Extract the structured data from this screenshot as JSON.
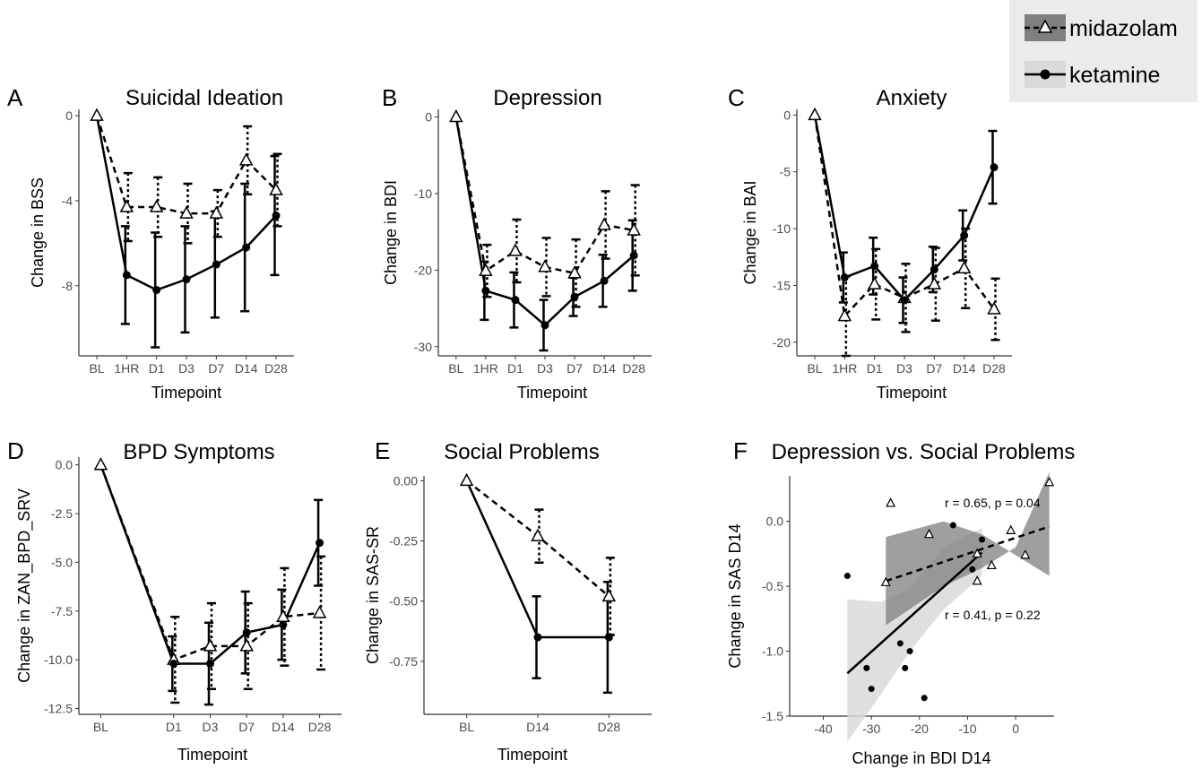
{
  "legend": {
    "items": [
      {
        "label": "midazolam",
        "style": "dashed-triangle"
      },
      {
        "label": "ketamine",
        "style": "solid-circle"
      }
    ]
  },
  "colors": {
    "line": "#000000",
    "axis": "#333333",
    "tick_text": "#4d4d4d",
    "legend_bg": "#ebebeb",
    "band_mid": "#7f7f7f",
    "band_ket": "#d9d9d9"
  },
  "chart_data": [
    {
      "panel": "A",
      "type": "line",
      "title": "Suicidal Ideation",
      "xlabel": "Timepoint",
      "ylabel": "Change in BSS",
      "categories": [
        "BL",
        "1HR",
        "D1",
        "D3",
        "D7",
        "D14",
        "D28"
      ],
      "ylim": [
        -11.3,
        0.3
      ],
      "yticks": [
        0,
        -4,
        -8
      ],
      "ytick_labels": [
        "0",
        "-4",
        "-8"
      ],
      "series": [
        {
          "name": "midazolam",
          "values": [
            0,
            -4.3,
            -4.3,
            -4.6,
            -4.6,
            -2.1,
            -3.5
          ],
          "err": [
            0,
            1.6,
            1.4,
            1.4,
            1.1,
            1.6,
            1.7
          ]
        },
        {
          "name": "ketamine",
          "values": [
            0,
            -7.5,
            -8.2,
            -7.7,
            -7.0,
            -6.2,
            -4.7
          ],
          "err": [
            0,
            2.3,
            2.7,
            2.5,
            2.5,
            3.0,
            2.8
          ]
        }
      ]
    },
    {
      "panel": "B",
      "type": "line",
      "title": "Depression",
      "xlabel": "Timepoint",
      "ylabel": "Change in BDI",
      "categories": [
        "BL",
        "1HR",
        "D1",
        "D3",
        "D7",
        "D14",
        "D28"
      ],
      "ylim": [
        -31.2,
        1
      ],
      "yticks": [
        0,
        -10,
        -20,
        -30
      ],
      "ytick_labels": [
        "0",
        "-10",
        "-20",
        "-30"
      ],
      "series": [
        {
          "name": "midazolam",
          "values": [
            0,
            -20.1,
            -17.5,
            -19.6,
            -20.4,
            -14.1,
            -14.8
          ],
          "err": [
            0,
            3.4,
            4.1,
            3.8,
            4.4,
            4.4,
            5.9
          ]
        },
        {
          "name": "ketamine",
          "values": [
            0,
            -22.7,
            -23.9,
            -27.2,
            -23.5,
            -21.4,
            -18.1
          ],
          "err": [
            0,
            3.8,
            3.6,
            3.3,
            2.5,
            3.4,
            4.6
          ]
        }
      ]
    },
    {
      "panel": "C",
      "type": "line",
      "title": "Anxiety",
      "xlabel": "Timepoint",
      "ylabel": "Change in BAI",
      "categories": [
        "BL",
        "1HR",
        "D1",
        "D3",
        "D7",
        "D14",
        "D28"
      ],
      "ylim": [
        -21.2,
        0.5
      ],
      "yticks": [
        0,
        -5,
        -10,
        -15,
        -20
      ],
      "ytick_labels": [
        "0",
        "-5",
        "-10",
        "-15",
        "-20"
      ],
      "series": [
        {
          "name": "midazolam",
          "values": [
            0,
            -17.7,
            -14.9,
            -16.1,
            -14.9,
            -13.5,
            -17.1
          ],
          "err": [
            0,
            3.5,
            3.1,
            3.0,
            3.2,
            3.5,
            2.7
          ]
        },
        {
          "name": "ketamine",
          "values": [
            0,
            -14.3,
            -13.3,
            -16.3,
            -13.6,
            -10.6,
            -4.6
          ],
          "err": [
            0,
            2.2,
            2.5,
            2.0,
            2.0,
            2.2,
            3.2
          ]
        }
      ]
    },
    {
      "panel": "D",
      "type": "line",
      "title": "BPD Symptoms",
      "xlabel": "Timepoint",
      "ylabel": "Change in ZAN_BPD_SRV",
      "categories": [
        "BL",
        "D1",
        "D3",
        "D7",
        "D14",
        "D28"
      ],
      "x": [
        0,
        2,
        3,
        4,
        5,
        6
      ],
      "ylim": [
        -12.8,
        0.4
      ],
      "yticks": [
        0,
        -2.5,
        -5,
        -7.5,
        -10,
        -12.5
      ],
      "ytick_labels": [
        "0.0",
        "-2.5",
        "-5.0",
        "-7.5",
        "-10.0",
        "-12.5"
      ],
      "series": [
        {
          "name": "midazolam",
          "values": [
            0,
            -10.0,
            -9.3,
            -9.3,
            -7.8,
            -7.6
          ],
          "err": [
            0,
            2.2,
            2.2,
            2.2,
            2.5,
            2.9
          ]
        },
        {
          "name": "ketamine",
          "values": [
            0,
            -10.2,
            -10.2,
            -8.6,
            -8.2,
            -4.0
          ],
          "err": [
            0,
            1.4,
            2.1,
            2.1,
            1.8,
            2.2
          ]
        }
      ]
    },
    {
      "panel": "E",
      "type": "line",
      "title": "Social Problems",
      "xlabel": "Timepoint",
      "ylabel": "Change in SAS-SR",
      "categories": [
        "BL",
        "D14",
        "D28"
      ],
      "ylim": [
        -0.97,
        0.02
      ],
      "yticks": [
        0,
        -0.25,
        -0.5,
        -0.75
      ],
      "ytick_labels": [
        "0.00",
        "-0.25",
        "-0.50",
        "-0.75"
      ],
      "series": [
        {
          "name": "midazolam",
          "values": [
            0,
            -0.23,
            -0.48
          ],
          "err": [
            0,
            0.11,
            0.16
          ]
        },
        {
          "name": "ketamine",
          "values": [
            0,
            -0.65,
            -0.65
          ],
          "err": [
            0,
            0.17,
            0.23
          ]
        }
      ]
    },
    {
      "panel": "F",
      "type": "scatter",
      "title": "Depression vs. Social Problems",
      "xlabel": "Change in BDI D14",
      "ylabel": "Change in SAS  D14",
      "xlim": [
        -47,
        8
      ],
      "ylim": [
        -1.5,
        0.35
      ],
      "xticks": [
        -40,
        -30,
        -20,
        -10,
        0
      ],
      "xtick_labels": [
        "-40",
        "-30",
        "-20",
        "-10",
        "0"
      ],
      "yticks": [
        0,
        -0.5,
        -1,
        -1.5
      ],
      "ytick_labels": [
        "0.0",
        "-0.5",
        "-1.0",
        "-1.5"
      ],
      "annotations": [
        "r = 0.65, p = 0.04",
        "r = 0.41, p = 0.22"
      ],
      "series": [
        {
          "name": "midazolam",
          "points": [
            [
              -27,
              -0.47
            ],
            [
              -26,
              0.14
            ],
            [
              -18,
              -0.1
            ],
            [
              -8,
              -0.25
            ],
            [
              -8,
              -0.46
            ],
            [
              -5,
              -0.34
            ],
            [
              -1,
              -0.07
            ],
            [
              2,
              -0.26
            ],
            [
              7,
              0.3
            ]
          ],
          "fit": {
            "x0": -27,
            "y0": -0.46,
            "x1": 7,
            "y1": -0.04
          },
          "band": [
            [
              -27,
              -0.8
            ],
            [
              -15,
              -0.5
            ],
            [
              -7,
              -0.36
            ],
            [
              0,
              -0.2
            ],
            [
              7,
              0.38
            ],
            [
              7,
              -0.42
            ],
            [
              0,
              -0.26
            ],
            [
              -7,
              -0.1
            ],
            [
              -15,
              0.0
            ],
            [
              -27,
              -0.12
            ]
          ]
        },
        {
          "name": "ketamine",
          "points": [
            [
              -35,
              -0.42
            ],
            [
              -31,
              -1.13
            ],
            [
              -30,
              -1.29
            ],
            [
              -24,
              -0.94
            ],
            [
              -23,
              -1.13
            ],
            [
              -22,
              -1.0
            ],
            [
              -19,
              -1.36
            ],
            [
              -13,
              -0.03
            ],
            [
              -9,
              -0.37
            ],
            [
              -7,
              -0.14
            ]
          ],
          "fit": {
            "x0": -35,
            "y0": -1.17,
            "x1": -7,
            "y1": -0.24
          },
          "band": [
            [
              -35,
              -1.7
            ],
            [
              -28,
              -1.33
            ],
            [
              -22,
              -1.0
            ],
            [
              -15,
              -0.68
            ],
            [
              -7,
              -0.42
            ],
            [
              -7,
              -0.05
            ],
            [
              -15,
              -0.2
            ],
            [
              -22,
              -0.52
            ],
            [
              -28,
              -0.62
            ],
            [
              -35,
              -0.6
            ]
          ]
        }
      ]
    }
  ]
}
